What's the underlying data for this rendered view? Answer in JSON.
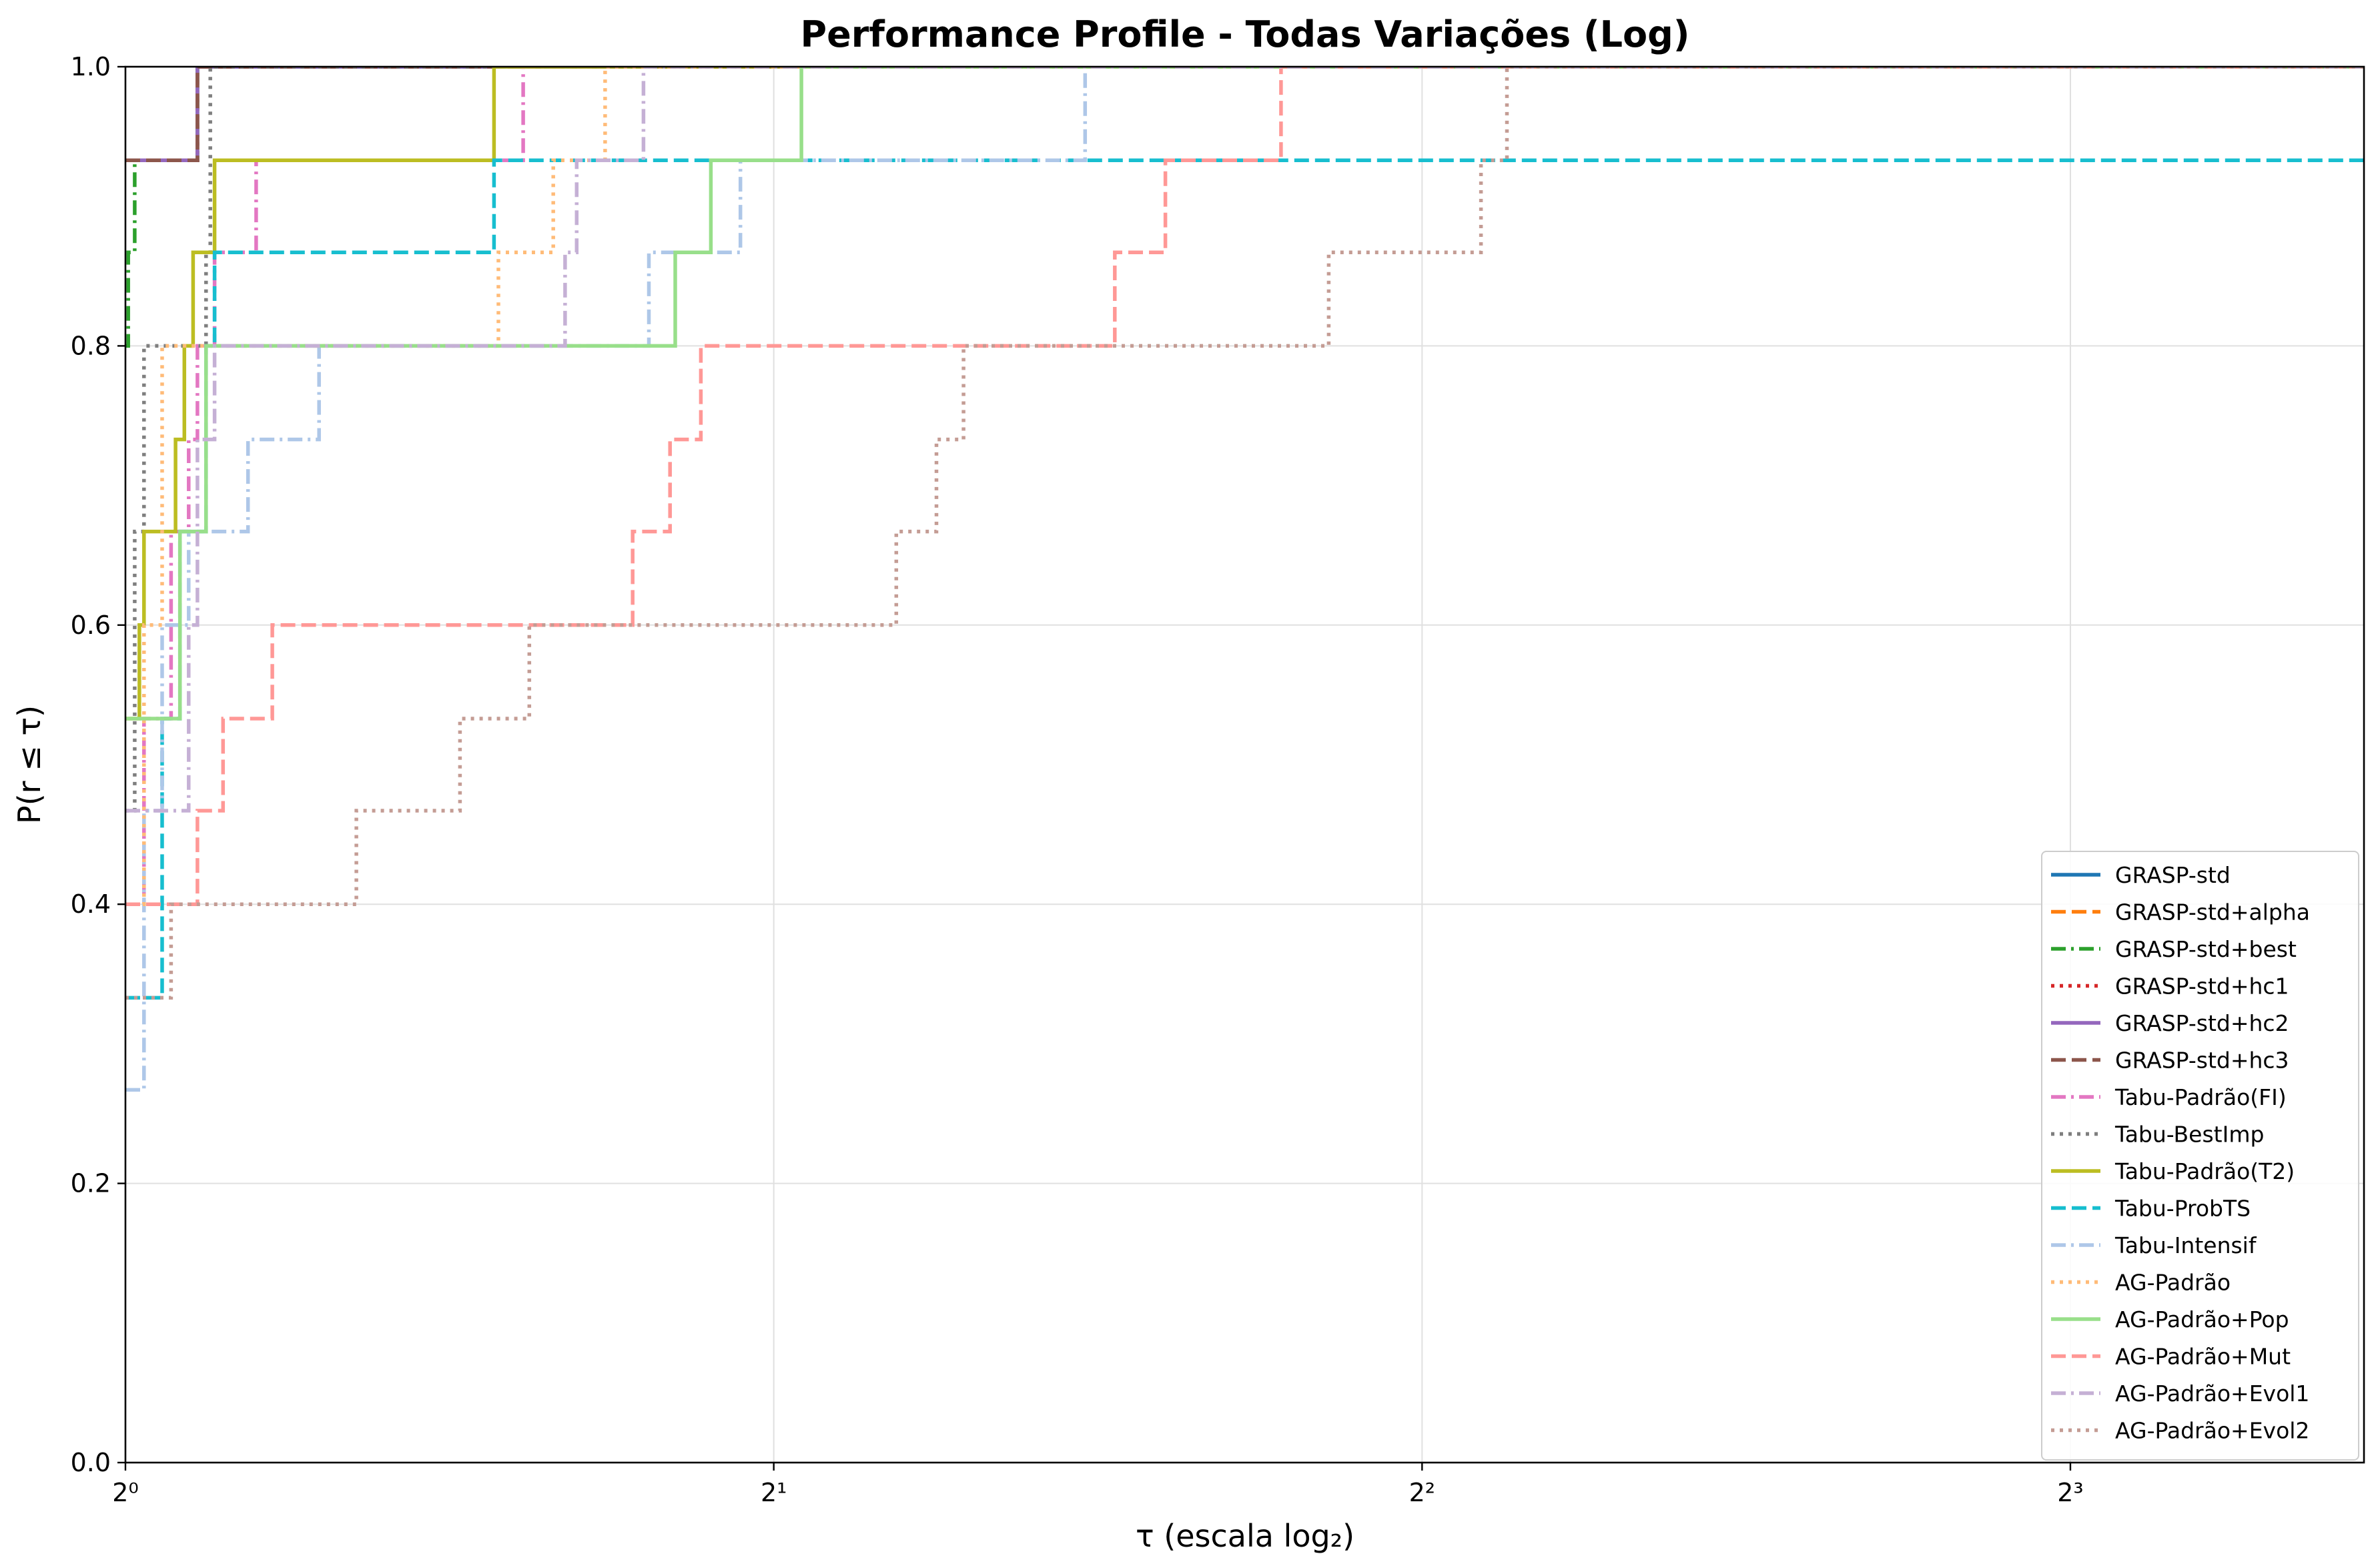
{
  "chart_data": {
    "type": "line",
    "step": true,
    "title": "Performance Profile - Todas Variações (Log)",
    "xlabel": "τ (escala log₂)",
    "ylabel": "P(r ≤ τ)",
    "xscale": "log2",
    "xlim": [
      1,
      10.95
    ],
    "ylim": [
      0,
      1
    ],
    "xticks": [
      {
        "value": 1,
        "label": "2⁰"
      },
      {
        "value": 2,
        "label": "2¹"
      },
      {
        "value": 4,
        "label": "2²"
      },
      {
        "value": 8,
        "label": "2³"
      }
    ],
    "yticks": [
      {
        "value": 0,
        "label": "0.0"
      },
      {
        "value": 0.2,
        "label": "0.2"
      },
      {
        "value": 0.4,
        "label": "0.4"
      },
      {
        "value": 0.6,
        "label": "0.6"
      },
      {
        "value": 0.8,
        "label": "0.8"
      },
      {
        "value": 1,
        "label": "1.0"
      }
    ],
    "grid": true,
    "legend_position": "lower-right",
    "series": [
      {
        "name": "GRASP-std",
        "color": "#1f77b4",
        "dash": "solid",
        "points": [
          [
            1,
            0.933
          ],
          [
            1.077,
            0.933
          ],
          [
            1.08,
            1.0
          ],
          [
            10.95,
            1.0
          ]
        ]
      },
      {
        "name": "GRASP-std+alpha",
        "color": "#ff7f0e",
        "dash": "dashed",
        "points": [
          [
            1,
            0.933
          ],
          [
            1.077,
            0.933
          ],
          [
            1.08,
            1.0
          ],
          [
            10.95,
            1.0
          ]
        ]
      },
      {
        "name": "GRASP-std+best",
        "color": "#2ca02c",
        "dash": "dashdot",
        "points": [
          [
            1,
            0.8
          ],
          [
            1.003,
            0.867
          ],
          [
            1.01,
            0.933
          ],
          [
            1.077,
            0.933
          ],
          [
            1.08,
            1.0
          ],
          [
            10.95,
            1.0
          ]
        ]
      },
      {
        "name": "GRASP-std+hc1",
        "color": "#d62728",
        "dash": "dotted",
        "points": [
          [
            1,
            0.933
          ],
          [
            1.077,
            0.933
          ],
          [
            1.08,
            1.0
          ],
          [
            10.95,
            1.0
          ]
        ]
      },
      {
        "name": "GRASP-std+hc2",
        "color": "#9467bd",
        "dash": "solid",
        "points": [
          [
            1,
            0.933
          ],
          [
            1.077,
            0.933
          ],
          [
            1.08,
            1.0
          ],
          [
            10.95,
            1.0
          ]
        ]
      },
      {
        "name": "GRASP-std+hc3",
        "color": "#8c564b",
        "dash": "dashed",
        "points": [
          [
            1,
            0.933
          ],
          [
            1.077,
            0.933
          ],
          [
            1.08,
            1.0
          ],
          [
            10.95,
            1.0
          ]
        ]
      },
      {
        "name": "Tabu-Padrão(FI)",
        "color": "#e377c2",
        "dash": "dashdot",
        "points": [
          [
            1,
            0.4
          ],
          [
            1.02,
            0.533
          ],
          [
            1.05,
            0.667
          ],
          [
            1.07,
            0.733
          ],
          [
            1.08,
            0.8
          ],
          [
            1.1,
            0.867
          ],
          [
            1.15,
            0.933
          ],
          [
            1.52,
            0.933
          ],
          [
            1.53,
            1.0
          ],
          [
            10.95,
            1.0
          ]
        ]
      },
      {
        "name": "Tabu-BestImp",
        "color": "#7f7f7f",
        "dash": "dotted",
        "points": [
          [
            1,
            0.467
          ],
          [
            1.01,
            0.667
          ],
          [
            1.02,
            0.8
          ],
          [
            1.08,
            0.8
          ],
          [
            1.09,
            0.867
          ],
          [
            1.095,
            1.0
          ],
          [
            10.95,
            1.0
          ]
        ]
      },
      {
        "name": "Tabu-Padrão(T2)",
        "color": "#bcbd22",
        "dash": "solid",
        "points": [
          [
            1,
            0.533
          ],
          [
            1.015,
            0.6
          ],
          [
            1.02,
            0.667
          ],
          [
            1.055,
            0.733
          ],
          [
            1.065,
            0.8
          ],
          [
            1.075,
            0.867
          ],
          [
            1.1,
            0.933
          ],
          [
            1.48,
            0.933
          ],
          [
            1.483,
            1.0
          ],
          [
            10.95,
            1.0
          ]
        ]
      },
      {
        "name": "Tabu-ProbTS",
        "color": "#17becf",
        "dash": "dashed",
        "points": [
          [
            1,
            0.333
          ],
          [
            1.04,
            0.533
          ],
          [
            1.06,
            0.667
          ],
          [
            1.09,
            0.8
          ],
          [
            1.1,
            0.867
          ],
          [
            1.48,
            0.867
          ],
          [
            1.483,
            0.933
          ],
          [
            10.95,
            0.933
          ]
        ]
      },
      {
        "name": "Tabu-Intensif",
        "color": "#aec7e8",
        "dash": "dashdot",
        "points": [
          [
            1,
            0.267
          ],
          [
            1.02,
            0.467
          ],
          [
            1.04,
            0.6
          ],
          [
            1.07,
            0.667
          ],
          [
            1.14,
            0.733
          ],
          [
            1.23,
            0.8
          ],
          [
            1.73,
            0.8
          ],
          [
            1.75,
            0.867
          ],
          [
            1.93,
            0.933
          ],
          [
            2.78,
            0.933
          ],
          [
            2.79,
            1.0
          ],
          [
            10.95,
            1.0
          ]
        ]
      },
      {
        "name": "AG-Padrão",
        "color": "#ffbb78",
        "dash": "dotted",
        "points": [
          [
            1,
            0.4
          ],
          [
            1.02,
            0.6
          ],
          [
            1.04,
            0.8
          ],
          [
            1.48,
            0.8
          ],
          [
            1.49,
            0.867
          ],
          [
            1.58,
            0.933
          ],
          [
            1.66,
            0.933
          ],
          [
            1.67,
            1.0
          ],
          [
            10.95,
            1.0
          ]
        ]
      },
      {
        "name": "AG-Padrão+Pop",
        "color": "#98df8a",
        "dash": "solid",
        "points": [
          [
            1,
            0.533
          ],
          [
            1.06,
            0.667
          ],
          [
            1.09,
            0.8
          ],
          [
            1.79,
            0.8
          ],
          [
            1.8,
            0.867
          ],
          [
            1.87,
            0.933
          ],
          [
            2.05,
            0.933
          ],
          [
            2.06,
            1.0
          ],
          [
            10.95,
            1.0
          ]
        ]
      },
      {
        "name": "AG-Padrão+Mut",
        "color": "#ff9896",
        "dash": "dashed",
        "points": [
          [
            1,
            0.4
          ],
          [
            1.08,
            0.467
          ],
          [
            1.11,
            0.533
          ],
          [
            1.17,
            0.6
          ],
          [
            1.65,
            0.6
          ],
          [
            1.72,
            0.667
          ],
          [
            1.79,
            0.733
          ],
          [
            1.85,
            0.8
          ],
          [
            2.86,
            0.8
          ],
          [
            2.88,
            0.867
          ],
          [
            3.04,
            0.933
          ],
          [
            3.43,
            0.933
          ],
          [
            3.44,
            1.0
          ],
          [
            10.95,
            1.0
          ]
        ]
      },
      {
        "name": "AG-Padrão+Evol1",
        "color": "#c5b0d5",
        "dash": "dashdot",
        "points": [
          [
            1,
            0.467
          ],
          [
            1.07,
            0.6
          ],
          [
            1.08,
            0.733
          ],
          [
            1.1,
            0.8
          ],
          [
            1.57,
            0.8
          ],
          [
            1.6,
            0.867
          ],
          [
            1.62,
            0.933
          ],
          [
            1.73,
            0.933
          ],
          [
            1.74,
            1.0
          ],
          [
            10.95,
            1.0
          ]
        ]
      },
      {
        "name": "AG-Padrão+Evol2",
        "color": "#c49c94",
        "dash": "dotted",
        "points": [
          [
            1,
            0.333
          ],
          [
            1.05,
            0.4
          ],
          [
            1.28,
            0.467
          ],
          [
            1.43,
            0.533
          ],
          [
            1.54,
            0.6
          ],
          [
            2.14,
            0.6
          ],
          [
            2.28,
            0.667
          ],
          [
            2.38,
            0.733
          ],
          [
            2.45,
            0.8
          ],
          [
            3.58,
            0.8
          ],
          [
            3.62,
            0.867
          ],
          [
            4.22,
            0.867
          ],
          [
            4.26,
            0.933
          ],
          [
            4.37,
            0.933
          ],
          [
            4.38,
            1.0
          ],
          [
            10.95,
            1.0
          ]
        ]
      }
    ]
  }
}
